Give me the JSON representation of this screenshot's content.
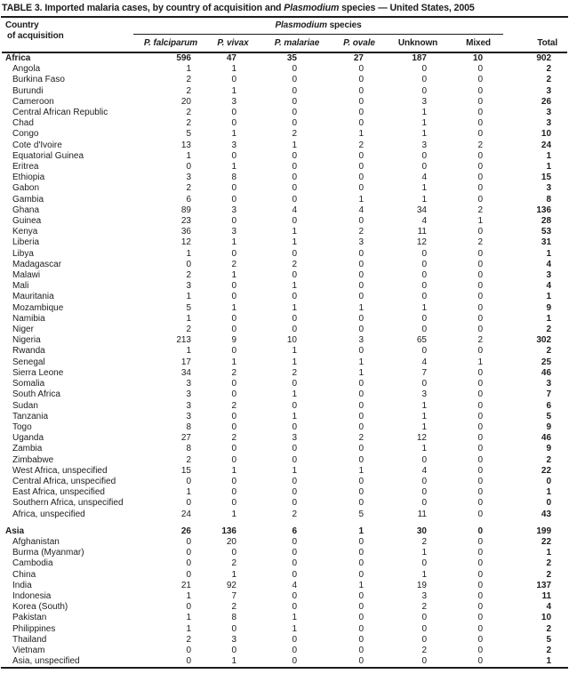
{
  "title": {
    "prefix": "TABLE 3. Imported malaria cases, by country of acquisition and ",
    "italic": "Plasmodium",
    "suffix": " species — United States, 2005"
  },
  "colors": {
    "text": "#1c1c1c",
    "background": "#ffffff",
    "rule": "#000000"
  },
  "table": {
    "country_header_line1": "Country",
    "country_header_line2": "of acquisition",
    "species_group": {
      "italic": "Plasmodium",
      "rest": " species"
    },
    "species_headers": [
      "P. falciparum",
      "P. vivax",
      "P. malariae",
      "P. ovale",
      "Unknown",
      "Mixed"
    ],
    "total_header": "Total",
    "rows": [
      {
        "name": "Africa",
        "bold": true,
        "values": [
          596,
          47,
          35,
          27,
          187,
          10,
          902
        ]
      },
      {
        "name": "Angola",
        "values": [
          1,
          1,
          0,
          0,
          0,
          0,
          2
        ]
      },
      {
        "name": "Burkina Faso",
        "values": [
          2,
          0,
          0,
          0,
          0,
          0,
          2
        ]
      },
      {
        "name": "Burundi",
        "values": [
          2,
          1,
          0,
          0,
          0,
          0,
          3
        ]
      },
      {
        "name": "Cameroon",
        "values": [
          20,
          3,
          0,
          0,
          3,
          0,
          26
        ]
      },
      {
        "name": "Central African Republic",
        "values": [
          2,
          0,
          0,
          0,
          1,
          0,
          3
        ]
      },
      {
        "name": "Chad",
        "values": [
          2,
          0,
          0,
          0,
          1,
          0,
          3
        ]
      },
      {
        "name": "Congo",
        "values": [
          5,
          1,
          2,
          1,
          1,
          0,
          10
        ]
      },
      {
        "name": "Cote d'Ivoire",
        "values": [
          13,
          3,
          1,
          2,
          3,
          2,
          24
        ]
      },
      {
        "name": "Equatorial Guinea",
        "values": [
          1,
          0,
          0,
          0,
          0,
          0,
          1
        ]
      },
      {
        "name": "Eritrea",
        "values": [
          0,
          1,
          0,
          0,
          0,
          0,
          1
        ]
      },
      {
        "name": "Ethiopia",
        "values": [
          3,
          8,
          0,
          0,
          4,
          0,
          15
        ]
      },
      {
        "name": "Gabon",
        "values": [
          2,
          0,
          0,
          0,
          1,
          0,
          3
        ]
      },
      {
        "name": "Gambia",
        "values": [
          6,
          0,
          0,
          1,
          1,
          0,
          8
        ]
      },
      {
        "name": "Ghana",
        "values": [
          89,
          3,
          4,
          4,
          34,
          2,
          136
        ]
      },
      {
        "name": "Guinea",
        "values": [
          23,
          0,
          0,
          0,
          4,
          1,
          28
        ]
      },
      {
        "name": "Kenya",
        "values": [
          36,
          3,
          1,
          2,
          11,
          0,
          53
        ]
      },
      {
        "name": "Liberia",
        "values": [
          12,
          1,
          1,
          3,
          12,
          2,
          31
        ]
      },
      {
        "name": "Libya",
        "values": [
          1,
          0,
          0,
          0,
          0,
          0,
          1
        ]
      },
      {
        "name": "Madagascar",
        "values": [
          0,
          2,
          2,
          0,
          0,
          0,
          4
        ]
      },
      {
        "name": "Malawi",
        "values": [
          2,
          1,
          0,
          0,
          0,
          0,
          3
        ]
      },
      {
        "name": "Mali",
        "values": [
          3,
          0,
          1,
          0,
          0,
          0,
          4
        ]
      },
      {
        "name": "Mauritania",
        "values": [
          1,
          0,
          0,
          0,
          0,
          0,
          1
        ]
      },
      {
        "name": "Mozambique",
        "values": [
          5,
          1,
          1,
          1,
          1,
          0,
          9
        ]
      },
      {
        "name": "Namibia",
        "values": [
          1,
          0,
          0,
          0,
          0,
          0,
          1
        ]
      },
      {
        "name": "Niger",
        "values": [
          2,
          0,
          0,
          0,
          0,
          0,
          2
        ]
      },
      {
        "name": "Nigeria",
        "values": [
          213,
          9,
          10,
          3,
          65,
          2,
          302
        ]
      },
      {
        "name": "Rwanda",
        "values": [
          1,
          0,
          1,
          0,
          0,
          0,
          2
        ]
      },
      {
        "name": "Senegal",
        "values": [
          17,
          1,
          1,
          1,
          4,
          1,
          25
        ]
      },
      {
        "name": "Sierra Leone",
        "values": [
          34,
          2,
          2,
          1,
          7,
          0,
          46
        ]
      },
      {
        "name": "Somalia",
        "values": [
          3,
          0,
          0,
          0,
          0,
          0,
          3
        ]
      },
      {
        "name": "South Africa",
        "values": [
          3,
          0,
          1,
          0,
          3,
          0,
          7
        ]
      },
      {
        "name": "Sudan",
        "values": [
          3,
          2,
          0,
          0,
          1,
          0,
          6
        ]
      },
      {
        "name": "Tanzania",
        "values": [
          3,
          0,
          1,
          0,
          1,
          0,
          5
        ]
      },
      {
        "name": "Togo",
        "values": [
          8,
          0,
          0,
          0,
          1,
          0,
          9
        ]
      },
      {
        "name": "Uganda",
        "values": [
          27,
          2,
          3,
          2,
          12,
          0,
          46
        ]
      },
      {
        "name": "Zambia",
        "values": [
          8,
          0,
          0,
          0,
          1,
          0,
          9
        ]
      },
      {
        "name": "Zimbabwe",
        "values": [
          2,
          0,
          0,
          0,
          0,
          0,
          2
        ]
      },
      {
        "name": "West Africa, unspecified",
        "values": [
          15,
          1,
          1,
          1,
          4,
          0,
          22
        ]
      },
      {
        "name": "Central Africa, unspecified",
        "values": [
          0,
          0,
          0,
          0,
          0,
          0,
          0
        ]
      },
      {
        "name": "East Africa, unspecified",
        "values": [
          1,
          0,
          0,
          0,
          0,
          0,
          1
        ]
      },
      {
        "name": "Southern Africa, unspecified",
        "values": [
          0,
          0,
          0,
          0,
          0,
          0,
          0
        ]
      },
      {
        "name": "Africa, unspecified",
        "values": [
          24,
          1,
          2,
          5,
          11,
          0,
          43
        ]
      },
      {
        "name": "Asia",
        "bold": true,
        "gap_before": true,
        "values": [
          26,
          136,
          6,
          1,
          30,
          0,
          199
        ]
      },
      {
        "name": "Afghanistan",
        "values": [
          0,
          20,
          0,
          0,
          2,
          0,
          22
        ]
      },
      {
        "name": "Burma (Myanmar)",
        "values": [
          0,
          0,
          0,
          0,
          1,
          0,
          1
        ]
      },
      {
        "name": "Cambodia",
        "values": [
          0,
          2,
          0,
          0,
          0,
          0,
          2
        ]
      },
      {
        "name": "China",
        "values": [
          0,
          1,
          0,
          0,
          1,
          0,
          2
        ]
      },
      {
        "name": "India",
        "values": [
          21,
          92,
          4,
          1,
          19,
          0,
          137
        ]
      },
      {
        "name": "Indonesia",
        "values": [
          1,
          7,
          0,
          0,
          3,
          0,
          11
        ]
      },
      {
        "name": "Korea (South)",
        "values": [
          0,
          2,
          0,
          0,
          2,
          0,
          4
        ]
      },
      {
        "name": "Pakistan",
        "values": [
          1,
          8,
          1,
          0,
          0,
          0,
          10
        ]
      },
      {
        "name": "Philippines",
        "values": [
          1,
          0,
          1,
          0,
          0,
          0,
          2
        ]
      },
      {
        "name": "Thailand",
        "values": [
          2,
          3,
          0,
          0,
          0,
          0,
          5
        ]
      },
      {
        "name": "Vietnam",
        "values": [
          0,
          0,
          0,
          0,
          2,
          0,
          2
        ]
      },
      {
        "name": "Asia, unspecified",
        "values": [
          0,
          1,
          0,
          0,
          0,
          0,
          1
        ]
      }
    ]
  }
}
